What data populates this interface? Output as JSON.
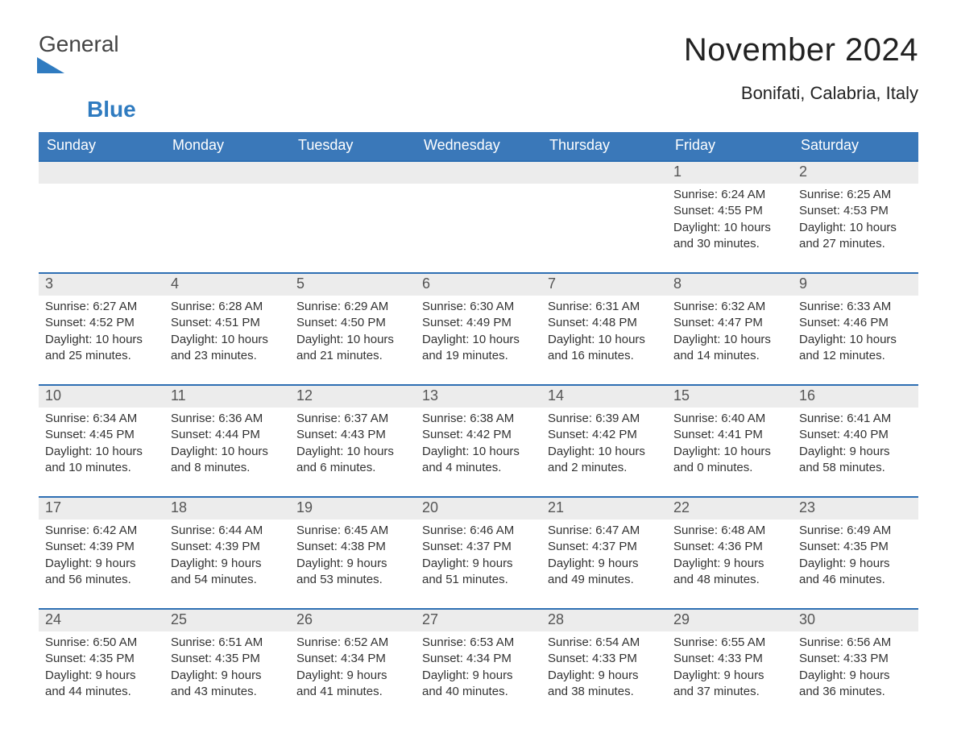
{
  "colors": {
    "header_blue": "#3a78b9",
    "accent_rule": "#2e6fb3",
    "day_number_bg": "#ececec",
    "text": "#333333",
    "background": "#ffffff",
    "logo_blue": "#2f7bc0"
  },
  "fonts": {
    "family": "Arial, Helvetica, sans-serif",
    "title_size_pt": 30,
    "subtitle_size_pt": 16,
    "dow_size_pt": 14,
    "daynum_size_pt": 14,
    "body_size_pt": 11
  },
  "logo": {
    "line1": "General",
    "line2": "Blue",
    "icon_name": "triangle-flag-icon"
  },
  "title": "November 2024",
  "subtitle": "Bonifati, Calabria, Italy",
  "days_of_week": [
    "Sunday",
    "Monday",
    "Tuesday",
    "Wednesday",
    "Thursday",
    "Friday",
    "Saturday"
  ],
  "calendar": {
    "type": "month-grid",
    "columns": 7,
    "rows": 5,
    "leading_blanks": 5,
    "days": [
      {
        "n": 1,
        "sunrise": "6:24 AM",
        "sunset": "4:55 PM",
        "daylight": "10 hours and 30 minutes."
      },
      {
        "n": 2,
        "sunrise": "6:25 AM",
        "sunset": "4:53 PM",
        "daylight": "10 hours and 27 minutes."
      },
      {
        "n": 3,
        "sunrise": "6:27 AM",
        "sunset": "4:52 PM",
        "daylight": "10 hours and 25 minutes."
      },
      {
        "n": 4,
        "sunrise": "6:28 AM",
        "sunset": "4:51 PM",
        "daylight": "10 hours and 23 minutes."
      },
      {
        "n": 5,
        "sunrise": "6:29 AM",
        "sunset": "4:50 PM",
        "daylight": "10 hours and 21 minutes."
      },
      {
        "n": 6,
        "sunrise": "6:30 AM",
        "sunset": "4:49 PM",
        "daylight": "10 hours and 19 minutes."
      },
      {
        "n": 7,
        "sunrise": "6:31 AM",
        "sunset": "4:48 PM",
        "daylight": "10 hours and 16 minutes."
      },
      {
        "n": 8,
        "sunrise": "6:32 AM",
        "sunset": "4:47 PM",
        "daylight": "10 hours and 14 minutes."
      },
      {
        "n": 9,
        "sunrise": "6:33 AM",
        "sunset": "4:46 PM",
        "daylight": "10 hours and 12 minutes."
      },
      {
        "n": 10,
        "sunrise": "6:34 AM",
        "sunset": "4:45 PM",
        "daylight": "10 hours and 10 minutes."
      },
      {
        "n": 11,
        "sunrise": "6:36 AM",
        "sunset": "4:44 PM",
        "daylight": "10 hours and 8 minutes."
      },
      {
        "n": 12,
        "sunrise": "6:37 AM",
        "sunset": "4:43 PM",
        "daylight": "10 hours and 6 minutes."
      },
      {
        "n": 13,
        "sunrise": "6:38 AM",
        "sunset": "4:42 PM",
        "daylight": "10 hours and 4 minutes."
      },
      {
        "n": 14,
        "sunrise": "6:39 AM",
        "sunset": "4:42 PM",
        "daylight": "10 hours and 2 minutes."
      },
      {
        "n": 15,
        "sunrise": "6:40 AM",
        "sunset": "4:41 PM",
        "daylight": "10 hours and 0 minutes."
      },
      {
        "n": 16,
        "sunrise": "6:41 AM",
        "sunset": "4:40 PM",
        "daylight": "9 hours and 58 minutes."
      },
      {
        "n": 17,
        "sunrise": "6:42 AM",
        "sunset": "4:39 PM",
        "daylight": "9 hours and 56 minutes."
      },
      {
        "n": 18,
        "sunrise": "6:44 AM",
        "sunset": "4:39 PM",
        "daylight": "9 hours and 54 minutes."
      },
      {
        "n": 19,
        "sunrise": "6:45 AM",
        "sunset": "4:38 PM",
        "daylight": "9 hours and 53 minutes."
      },
      {
        "n": 20,
        "sunrise": "6:46 AM",
        "sunset": "4:37 PM",
        "daylight": "9 hours and 51 minutes."
      },
      {
        "n": 21,
        "sunrise": "6:47 AM",
        "sunset": "4:37 PM",
        "daylight": "9 hours and 49 minutes."
      },
      {
        "n": 22,
        "sunrise": "6:48 AM",
        "sunset": "4:36 PM",
        "daylight": "9 hours and 48 minutes."
      },
      {
        "n": 23,
        "sunrise": "6:49 AM",
        "sunset": "4:35 PM",
        "daylight": "9 hours and 46 minutes."
      },
      {
        "n": 24,
        "sunrise": "6:50 AM",
        "sunset": "4:35 PM",
        "daylight": "9 hours and 44 minutes."
      },
      {
        "n": 25,
        "sunrise": "6:51 AM",
        "sunset": "4:35 PM",
        "daylight": "9 hours and 43 minutes."
      },
      {
        "n": 26,
        "sunrise": "6:52 AM",
        "sunset": "4:34 PM",
        "daylight": "9 hours and 41 minutes."
      },
      {
        "n": 27,
        "sunrise": "6:53 AM",
        "sunset": "4:34 PM",
        "daylight": "9 hours and 40 minutes."
      },
      {
        "n": 28,
        "sunrise": "6:54 AM",
        "sunset": "4:33 PM",
        "daylight": "9 hours and 38 minutes."
      },
      {
        "n": 29,
        "sunrise": "6:55 AM",
        "sunset": "4:33 PM",
        "daylight": "9 hours and 37 minutes."
      },
      {
        "n": 30,
        "sunrise": "6:56 AM",
        "sunset": "4:33 PM",
        "daylight": "9 hours and 36 minutes."
      }
    ]
  },
  "labels": {
    "sunrise": "Sunrise: ",
    "sunset": "Sunset: ",
    "daylight": "Daylight: "
  }
}
